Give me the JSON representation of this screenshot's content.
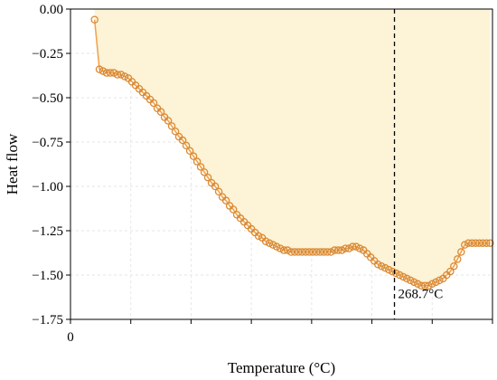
{
  "chart_data": {
    "type": "area",
    "xlabel": "Temperature (°C)",
    "ylabel": "Heat flow",
    "ylim": [
      -1.75,
      0.0
    ],
    "yticks": [
      0.0,
      -0.25,
      -0.5,
      -0.75,
      -1.0,
      -1.25,
      -1.5,
      -1.75
    ],
    "yticklabels": [
      "0.00",
      "−0.25",
      "−0.50",
      "−0.75",
      "−1.00",
      "−1.25",
      "−1.50",
      "−1.75"
    ],
    "xlim": [
      0,
      350
    ],
    "xticks": [
      0,
      50,
      100,
      150,
      200,
      250,
      300,
      350
    ],
    "xticklabels": [
      "0",
      "",
      "",
      "",
      "",
      "",
      "",
      ""
    ],
    "grid": true,
    "series_color": "#f0a04b",
    "marker_edge_color": "#d98a35",
    "fill_color": "#fdf3d6",
    "annotation": {
      "x": 268.7,
      "label": "268.7°C"
    },
    "series": [
      {
        "x": [
          20,
          24,
          27,
          30,
          33,
          36,
          39,
          42,
          45,
          48,
          51,
          54,
          57,
          60,
          63,
          66,
          69,
          72,
          75,
          78,
          81,
          84,
          87,
          90,
          93,
          96,
          99,
          102,
          105,
          108,
          111,
          114,
          117,
          120,
          123,
          126,
          129,
          132,
          135,
          138,
          141,
          144,
          147,
          150,
          153,
          156,
          159,
          162,
          165,
          168,
          171,
          174,
          177,
          180,
          183,
          186,
          189,
          192,
          195,
          198,
          201,
          204,
          207,
          210,
          213,
          216,
          219,
          222,
          225,
          228,
          231,
          234,
          237,
          240,
          243,
          246,
          249,
          252,
          255,
          258,
          261,
          264,
          267,
          270,
          273,
          276,
          279,
          282,
          285,
          288,
          291,
          294,
          297,
          300,
          303,
          306,
          309,
          312,
          315,
          318,
          321,
          324,
          327,
          330,
          333,
          336,
          339,
          342,
          345,
          348
        ],
        "y": [
          -0.06,
          -0.34,
          -0.35,
          -0.36,
          -0.36,
          -0.36,
          -0.37,
          -0.37,
          -0.38,
          -0.39,
          -0.41,
          -0.43,
          -0.45,
          -0.47,
          -0.49,
          -0.51,
          -0.53,
          -0.56,
          -0.58,
          -0.61,
          -0.63,
          -0.66,
          -0.69,
          -0.72,
          -0.74,
          -0.77,
          -0.8,
          -0.83,
          -0.86,
          -0.89,
          -0.92,
          -0.95,
          -0.98,
          -1.0,
          -1.03,
          -1.06,
          -1.08,
          -1.11,
          -1.13,
          -1.16,
          -1.18,
          -1.2,
          -1.22,
          -1.24,
          -1.26,
          -1.28,
          -1.29,
          -1.31,
          -1.32,
          -1.33,
          -1.34,
          -1.35,
          -1.36,
          -1.36,
          -1.37,
          -1.37,
          -1.37,
          -1.37,
          -1.37,
          -1.37,
          -1.37,
          -1.37,
          -1.37,
          -1.37,
          -1.37,
          -1.37,
          -1.36,
          -1.36,
          -1.36,
          -1.35,
          -1.35,
          -1.34,
          -1.34,
          -1.35,
          -1.36,
          -1.38,
          -1.4,
          -1.42,
          -1.44,
          -1.45,
          -1.46,
          -1.47,
          -1.48,
          -1.49,
          -1.5,
          -1.51,
          -1.52,
          -1.53,
          -1.54,
          -1.55,
          -1.56,
          -1.56,
          -1.56,
          -1.55,
          -1.54,
          -1.53,
          -1.52,
          -1.5,
          -1.48,
          -1.45,
          -1.41,
          -1.37,
          -1.33,
          -1.32,
          -1.32,
          -1.32,
          -1.32,
          -1.32,
          -1.32,
          -1.32
        ]
      }
    ]
  }
}
